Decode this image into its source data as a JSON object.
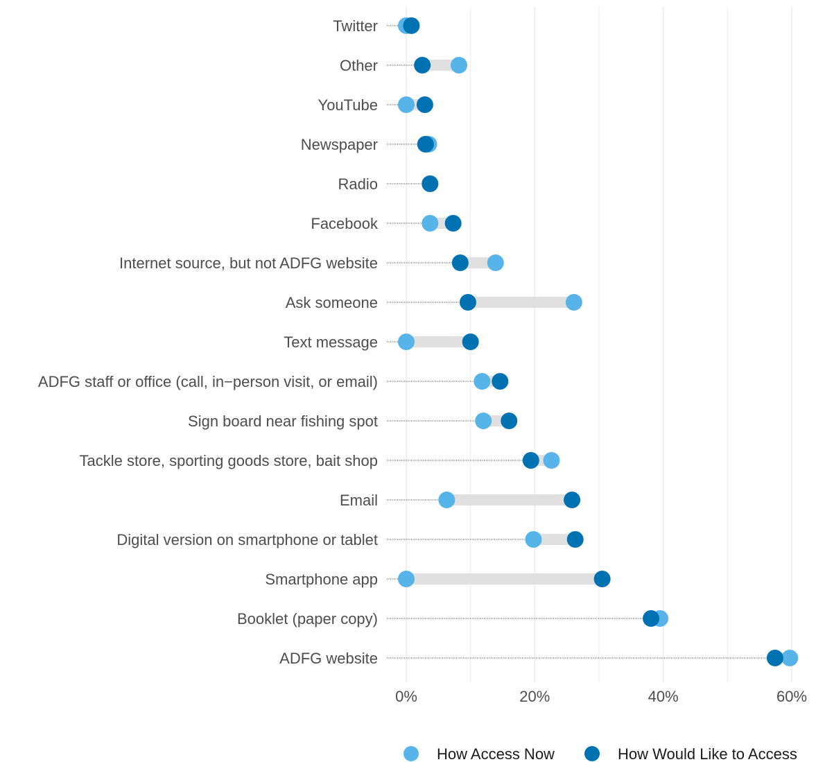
{
  "chart_data": {
    "type": "dumbbell",
    "title": "",
    "xlabel": "",
    "ylabel": "",
    "x_tick_labels": [
      "0%",
      "20%",
      "40%",
      "60%"
    ],
    "x_ticks": [
      0,
      20,
      40,
      60
    ],
    "xlim": [
      0,
      60
    ],
    "grid": "vertical",
    "legend_position": "bottom-right",
    "colors": {
      "now": "#56b4e9",
      "like": "#0072b2",
      "range_bar": "#e0e0e0",
      "grid": "#ebebeb",
      "leader": "#333333"
    },
    "series": [
      {
        "key": "now",
        "name": "How Access Now"
      },
      {
        "key": "like",
        "name": "How Would Like to Access"
      }
    ],
    "categories": [
      {
        "label": "Twitter",
        "now": 0,
        "like": 0.8
      },
      {
        "label": "Other",
        "now": 8.2,
        "like": 2.5
      },
      {
        "label": "YouTube",
        "now": 0,
        "like": 2.9
      },
      {
        "label": "Newspaper",
        "now": 3.5,
        "like": 3.0
      },
      {
        "label": "Radio",
        "now": 3.7,
        "like": 3.7
      },
      {
        "label": "Facebook",
        "now": 3.7,
        "like": 7.3
      },
      {
        "label": "Internet source, but not ADFG website",
        "now": 13.9,
        "like": 8.4
      },
      {
        "label": "Ask someone",
        "now": 26.1,
        "like": 9.6
      },
      {
        "label": "Text message",
        "now": 0,
        "like": 10.0
      },
      {
        "label": "ADFG staff or office (call, in−person visit, or email)",
        "now": 11.8,
        "like": 14.6
      },
      {
        "label": "Sign board near fishing spot",
        "now": 12.0,
        "like": 16.0
      },
      {
        "label": "Tackle store, sporting goods store, bait shop",
        "now": 22.6,
        "like": 19.4
      },
      {
        "label": "Email",
        "now": 6.3,
        "like": 25.8
      },
      {
        "label": "Digital version on smartphone or tablet",
        "now": 19.8,
        "like": 26.3
      },
      {
        "label": "Smartphone app",
        "now": 0,
        "like": 30.5
      },
      {
        "label": "Booklet (paper copy)",
        "now": 39.5,
        "like": 38.1
      },
      {
        "label": "ADFG website",
        "now": 59.7,
        "like": 57.4
      }
    ]
  }
}
